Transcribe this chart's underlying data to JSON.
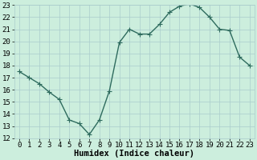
{
  "x": [
    0,
    1,
    2,
    3,
    4,
    5,
    6,
    7,
    8,
    9,
    10,
    11,
    12,
    13,
    14,
    15,
    16,
    17,
    18,
    19,
    20,
    21,
    22,
    23
  ],
  "y": [
    17.5,
    17.0,
    16.5,
    15.8,
    15.2,
    13.5,
    13.2,
    12.3,
    13.5,
    15.9,
    19.9,
    21.0,
    20.6,
    20.6,
    21.4,
    22.4,
    22.9,
    23.1,
    22.8,
    22.0,
    21.0,
    20.9,
    18.7,
    18.0
  ],
  "line_color": "#2e6b5e",
  "marker": "+",
  "marker_size": 4,
  "bg_color": "#cceedd",
  "grid_color": "#aacccc",
  "xlabel": "Humidex (Indice chaleur)",
  "ylabel": "",
  "ylim": [
    12,
    23
  ],
  "xlim": [
    -0.5,
    23.5
  ],
  "yticks": [
    12,
    13,
    14,
    15,
    16,
    17,
    18,
    19,
    20,
    21,
    22,
    23
  ],
  "xticks": [
    0,
    1,
    2,
    3,
    4,
    5,
    6,
    7,
    8,
    9,
    10,
    11,
    12,
    13,
    14,
    15,
    16,
    17,
    18,
    19,
    20,
    21,
    22,
    23
  ],
  "xlabel_fontsize": 7.5,
  "tick_fontsize": 6.5,
  "linewidth": 1.0
}
